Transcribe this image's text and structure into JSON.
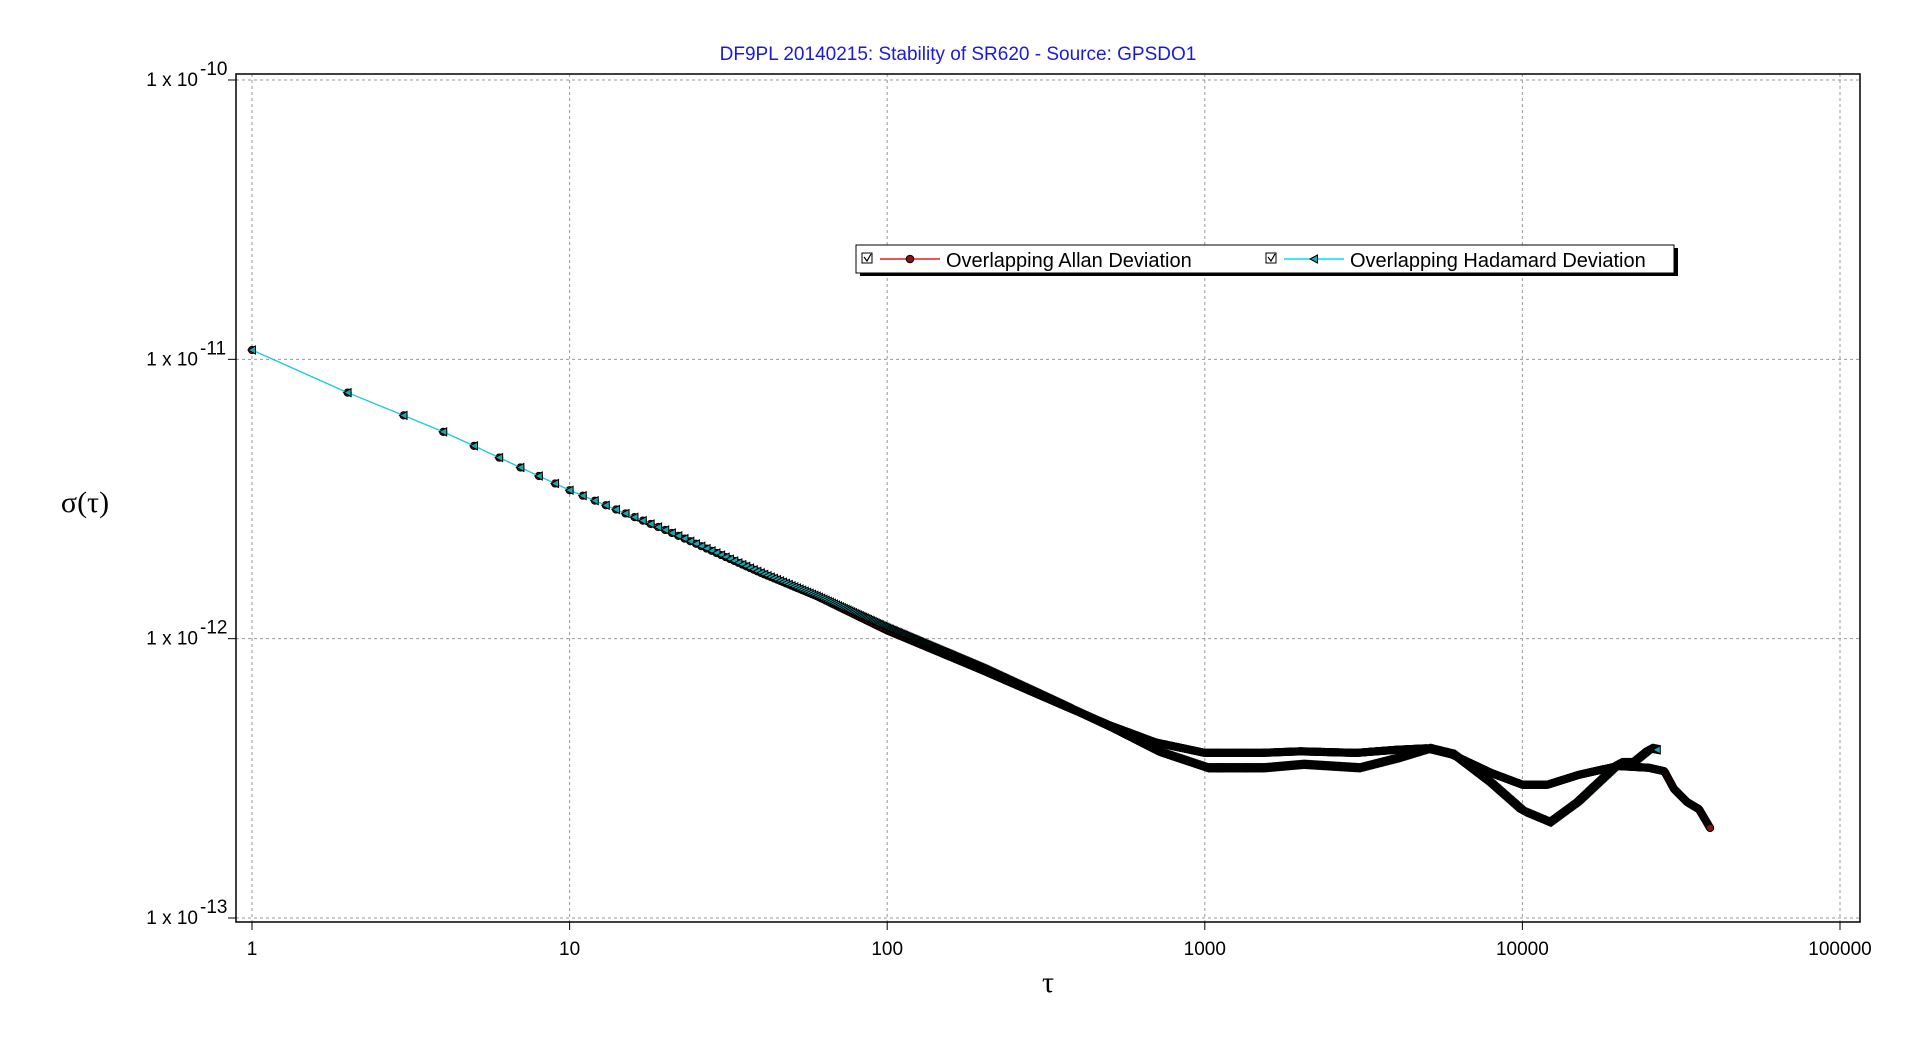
{
  "chart_data": {
    "type": "line",
    "title": "DF9PL 20140215: Stability of SR620 - Source: GPSDO1",
    "xlabel": "τ",
    "ylabel": "σ(τ)",
    "xscale": "log",
    "yscale": "log",
    "xlim": [
      1,
      100000
    ],
    "ylim": [
      1e-13,
      1e-10
    ],
    "x_ticks": [
      {
        "value": 1,
        "label": "1"
      },
      {
        "value": 10,
        "label": "10"
      },
      {
        "value": 100,
        "label": "100"
      },
      {
        "value": 1000,
        "label": "1000"
      },
      {
        "value": 10000,
        "label": "10000"
      },
      {
        "value": 100000,
        "label": "100000"
      }
    ],
    "y_ticks": [
      {
        "value": 1e-10,
        "mantissa": "1 x 10",
        "exponent": "-10"
      },
      {
        "value": 1e-11,
        "mantissa": "1 x 10",
        "exponent": "-11"
      },
      {
        "value": 1e-12,
        "mantissa": "1 x 10",
        "exponent": "-12"
      },
      {
        "value": 1e-13,
        "mantissa": "1 x 10",
        "exponent": "-13"
      }
    ],
    "grid": true,
    "legend_position": "upper-right",
    "series": [
      {
        "name": "Overlapping Allan Deviation",
        "line_color": "#e02020",
        "marker_color": "#8b1010",
        "marker": "circle",
        "points": [
          [
            1,
            1.08e-11
          ],
          [
            2,
            7.6e-12
          ],
          [
            3,
            6.3e-12
          ],
          [
            4,
            5.5e-12
          ],
          [
            5,
            4.9e-12
          ],
          [
            7,
            4.1e-12
          ],
          [
            10,
            3.4e-12
          ],
          [
            20,
            2.45e-12
          ],
          [
            40,
            1.72e-12
          ],
          [
            60,
            1.42e-12
          ],
          [
            100,
            1.07e-12
          ],
          [
            200,
            7.7e-13
          ],
          [
            300,
            6.3e-13
          ],
          [
            500,
            4.9e-13
          ],
          [
            700,
            4.25e-13
          ],
          [
            1000,
            3.9e-13
          ],
          [
            1500,
            3.9e-13
          ],
          [
            2000,
            3.95e-13
          ],
          [
            3000,
            3.9e-13
          ],
          [
            4000,
            4e-13
          ],
          [
            5000,
            4.05e-13
          ],
          [
            6000,
            3.85e-13
          ],
          [
            8000,
            3.3e-13
          ],
          [
            10000,
            3e-13
          ],
          [
            12000,
            3e-13
          ],
          [
            15000,
            3.25e-13
          ],
          [
            20000,
            3.5e-13
          ],
          [
            25000,
            3.45e-13
          ],
          [
            28000,
            3.35e-13
          ],
          [
            30000,
            2.9e-13
          ],
          [
            33000,
            2.6e-13
          ],
          [
            36000,
            2.45e-13
          ],
          [
            39000,
            2.1e-13
          ]
        ]
      },
      {
        "name": "Overlapping Hadamard Deviation",
        "line_color": "#00e0f0",
        "marker_color": "#1aa8b0",
        "marker": "triangle-left",
        "points": [
          [
            1,
            1.08e-11
          ],
          [
            2,
            7.6e-12
          ],
          [
            3,
            6.3e-12
          ],
          [
            4,
            5.5e-12
          ],
          [
            5,
            4.9e-12
          ],
          [
            7,
            4.1e-12
          ],
          [
            10,
            3.4e-12
          ],
          [
            20,
            2.45e-12
          ],
          [
            40,
            1.72e-12
          ],
          [
            60,
            1.42e-12
          ],
          [
            100,
            1.09e-12
          ],
          [
            200,
            7.8e-13
          ],
          [
            300,
            6.3e-13
          ],
          [
            500,
            4.8e-13
          ],
          [
            700,
            3.95e-13
          ],
          [
            1000,
            3.45e-13
          ],
          [
            1500,
            3.45e-13
          ],
          [
            2000,
            3.55e-13
          ],
          [
            3000,
            3.45e-13
          ],
          [
            4000,
            3.75e-13
          ],
          [
            5000,
            4.05e-13
          ],
          [
            6000,
            3.85e-13
          ],
          [
            8000,
            3e-13
          ],
          [
            10000,
            2.4e-13
          ],
          [
            12000,
            2.2e-13
          ],
          [
            15000,
            2.65e-13
          ],
          [
            20000,
            3.6e-13
          ],
          [
            22000,
            3.6e-13
          ],
          [
            25000,
            4.05e-13
          ],
          [
            26500,
            4e-13
          ]
        ]
      }
    ]
  }
}
